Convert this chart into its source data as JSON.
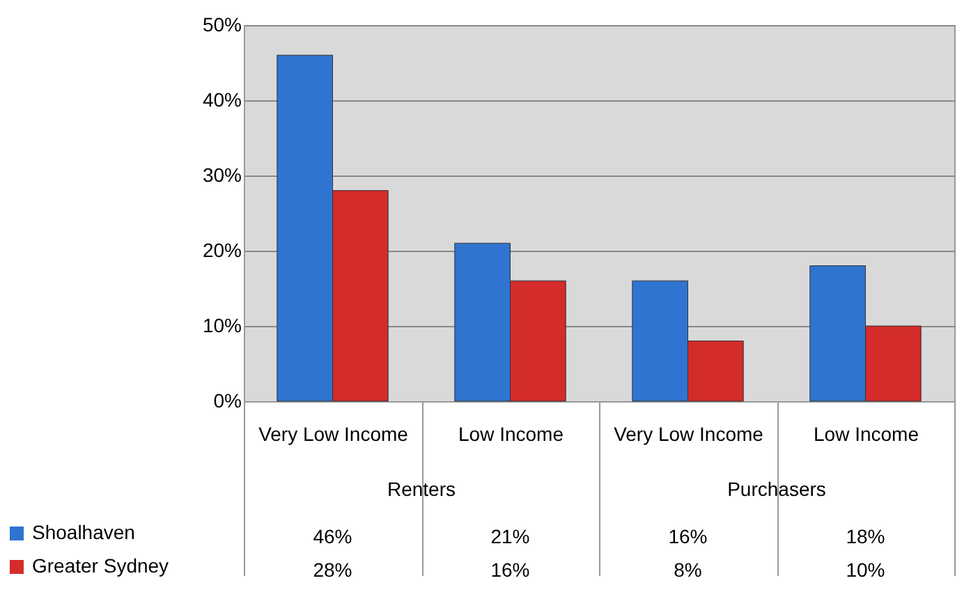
{
  "chart_data": {
    "type": "bar",
    "categories": [
      "Very Low Income",
      "Low Income",
      "Very Low Income",
      "Low Income"
    ],
    "series": [
      {
        "name": "Shoalhaven",
        "color": "#2f74d0",
        "values": [
          46,
          21,
          16,
          18
        ],
        "value_labels": [
          "46%",
          "21%",
          "16%",
          "18%"
        ]
      },
      {
        "name": "Greater Sydney",
        "color": "#d42b2b",
        "values": [
          28,
          16,
          8,
          10
        ],
        "value_labels": [
          "28%",
          "16%",
          "8%",
          "10%"
        ]
      }
    ],
    "ylim": [
      0,
      50
    ],
    "yticks": [
      {
        "value": 0,
        "label": "0%"
      },
      {
        "value": 10,
        "label": "10%"
      },
      {
        "value": 20,
        "label": "20%"
      },
      {
        "value": 30,
        "label": "30%"
      },
      {
        "value": 40,
        "label": "40%"
      },
      {
        "value": 50,
        "label": "50%"
      }
    ],
    "grid": "y",
    "legend": "bottom left",
    "annotations": [
      "Renters",
      "Purchasers"
    ]
  }
}
